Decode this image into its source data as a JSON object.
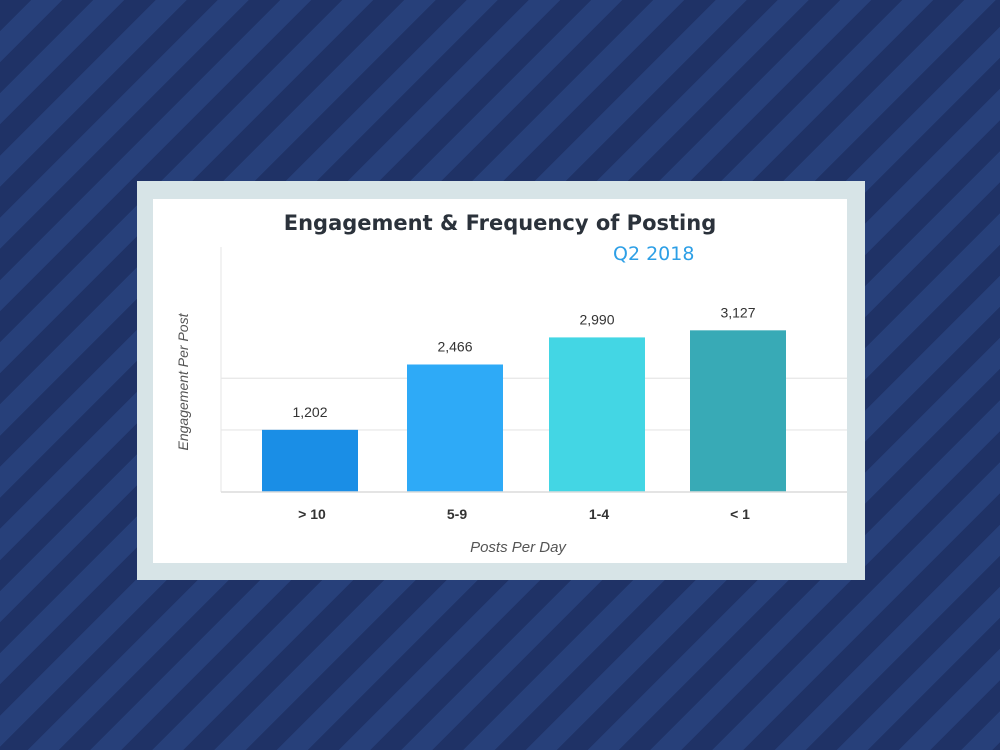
{
  "chart_data": {
    "type": "bar",
    "title": "Engagement & Frequency of Posting",
    "subtitle": "Q2 2018",
    "xlabel": "Posts Per Day",
    "ylabel": "Engagement Per Post",
    "categories": [
      "> 10",
      "5-9",
      "1-4",
      "< 1"
    ],
    "values": [
      1202,
      2466,
      2990,
      3127
    ],
    "value_labels": [
      "1,202",
      "2,466",
      "2,990",
      "3,127"
    ],
    "colors": [
      "#1a8ee6",
      "#2eaaf7",
      "#43d6e4",
      "#38aab6"
    ],
    "ylim": [
      0,
      4700
    ],
    "grid": true,
    "legend": "none"
  }
}
